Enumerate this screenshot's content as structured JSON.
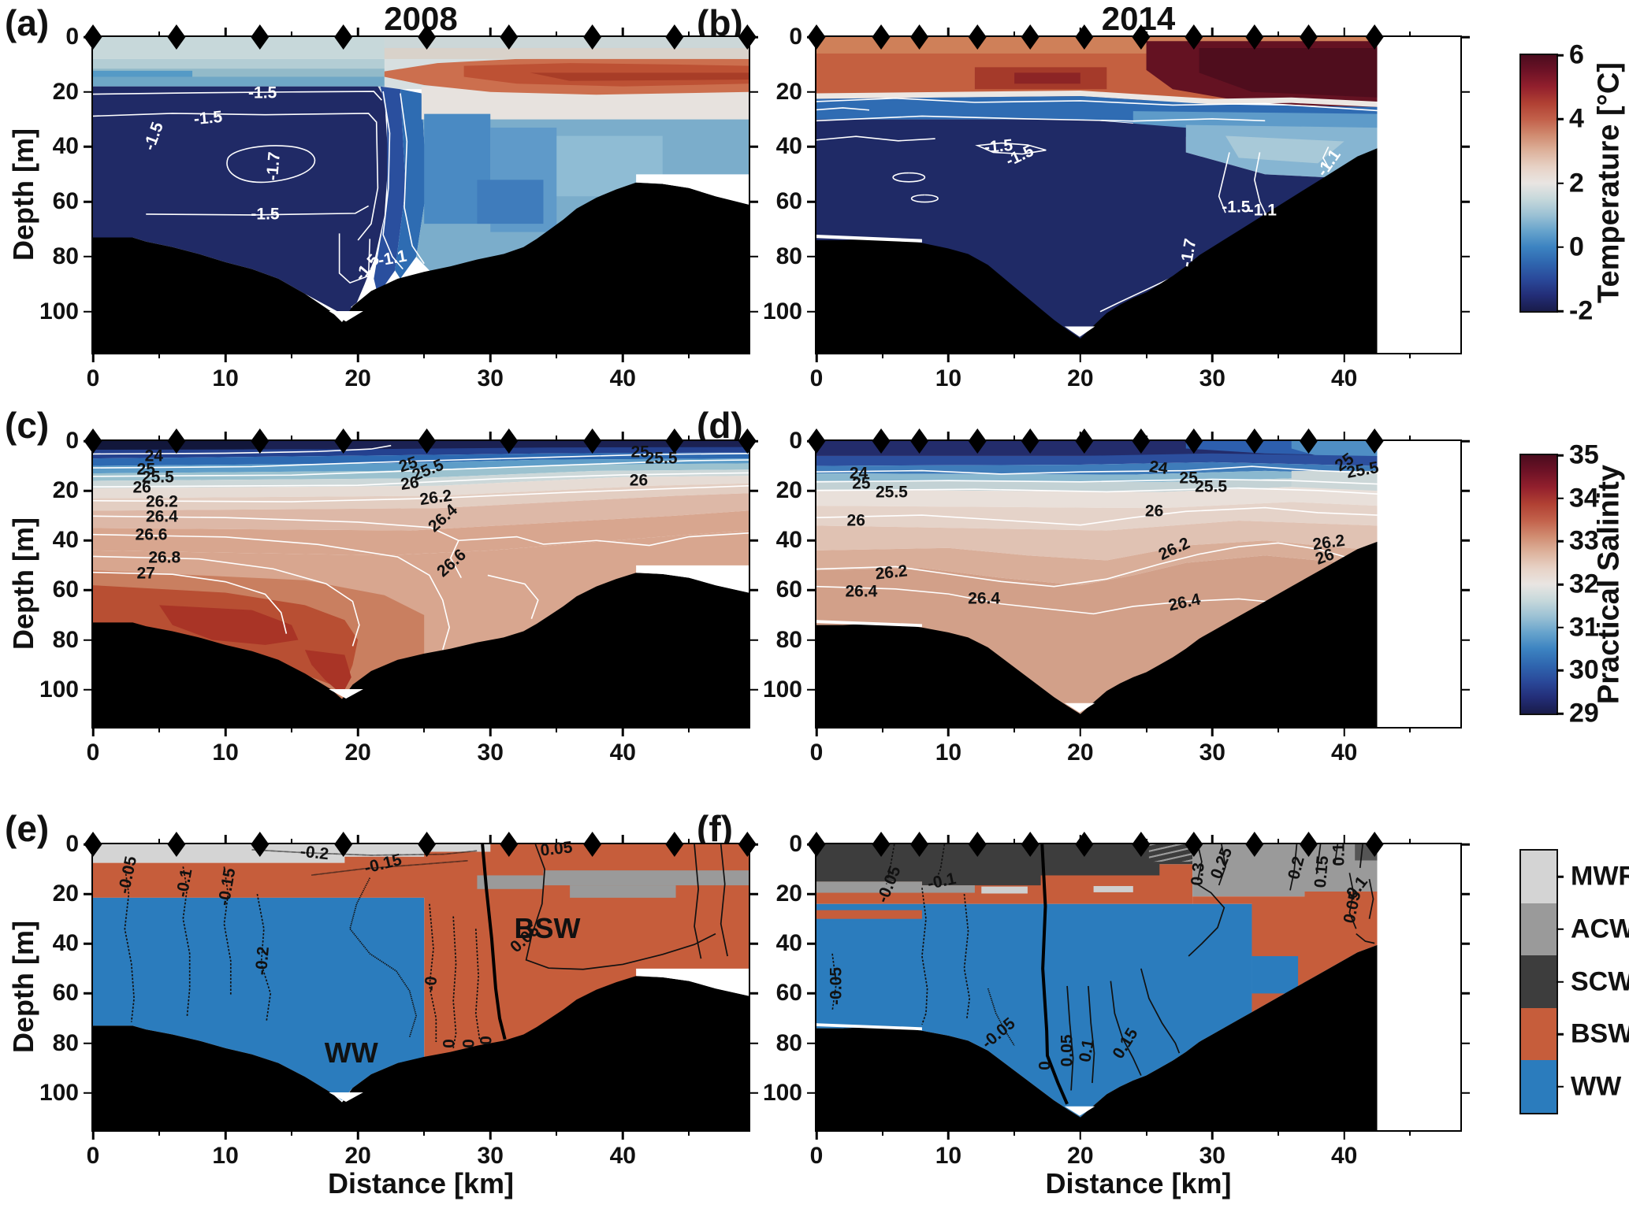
{
  "chart_data": {
    "type": "filled-contour-sections",
    "description_axes": {
      "x": "Distance [km]",
      "y": "Depth [m]"
    },
    "axis": {
      "xlabel": "Distance [km]",
      "ylabel": "Depth [m]"
    },
    "titles": {
      "left": "2008",
      "right": "2014"
    },
    "station_marker": "black-diamond",
    "colorbars": {
      "temperature": {
        "label": "Temperature [°C]",
        "ticks": [
          "6",
          "4",
          "2",
          "0",
          "-2"
        ],
        "range": [
          -2,
          6
        ],
        "stops": [
          "#4b0c1e",
          "#6e1226",
          "#93202d",
          "#b04033",
          "#c2604a",
          "#d08b70",
          "#ddb29c",
          "#e7d2c6",
          "#e9e5e2",
          "#c6d8db",
          "#9bc1d4",
          "#66a3cc",
          "#3c83c1",
          "#2f66af",
          "#2a499a",
          "#232e78",
          "#191c4a"
        ]
      },
      "salinity": {
        "label": "Practical Salinity",
        "ticks": [
          "35",
          "34",
          "33",
          "32",
          "31",
          "30",
          "29"
        ],
        "range": [
          29,
          35
        ],
        "stops": [
          "#4b0c1e",
          "#6e1226",
          "#93202d",
          "#b04033",
          "#c2604a",
          "#d08b70",
          "#ddb29c",
          "#e7d2c6",
          "#e9e5e2",
          "#c6d8db",
          "#9bc1d4",
          "#66a3cc",
          "#3c83c1",
          "#2f66af",
          "#2a499a",
          "#232e78",
          "#191c4a"
        ]
      },
      "water_mass": {
        "entries": [
          {
            "label": "MWR",
            "color": "#d4d4d4"
          },
          {
            "label": "ACW",
            "color": "#9a9a9a"
          },
          {
            "label": "SCW",
            "color": "#3d3d3d"
          },
          {
            "label": "BSW",
            "color": "#c65d3b"
          },
          {
            "label": "WW",
            "color": "#2b7cbd"
          }
        ]
      }
    },
    "panels": [
      {
        "id": "a",
        "letter": "(a)",
        "title": "2008",
        "variable": "temperature",
        "year": 2008,
        "colorbar": "temperature",
        "xmax": 49.5,
        "ymax": 115,
        "xticks": [
          0,
          10,
          20,
          30,
          40
        ],
        "xminor": [
          5,
          15,
          25,
          35,
          45
        ],
        "yticks": [
          0,
          20,
          40,
          60,
          80,
          100
        ],
        "stations_km": [
          0,
          6.3,
          12.6,
          18.9,
          25.2,
          31.4,
          37.7,
          43.9,
          49.4
        ],
        "contour_color": "#ffffff",
        "contour_labels": [
          [
            "-1.5",
            12.8,
            20.3,
            0
          ],
          [
            "-1.5",
            8.7,
            29.5,
            -5
          ],
          [
            "-1.5",
            4.6,
            36,
            -70
          ],
          [
            "-1.7",
            13.6,
            47,
            -85
          ],
          [
            "-1.5",
            13,
            64.5,
            0
          ],
          [
            "-1.5",
            20.7,
            84,
            -50
          ],
          [
            "-1.1",
            22.6,
            80.5,
            -10
          ]
        ],
        "region_labels": []
      },
      {
        "id": "b",
        "letter": "(b)",
        "title": "2014",
        "variable": "temperature",
        "year": 2014,
        "colorbar": "temperature",
        "xmax": 48.8,
        "ymax": 115,
        "data_xmax": 42.5,
        "xticks": [
          0,
          10,
          20,
          30,
          40
        ],
        "xminor": [
          5,
          15,
          25,
          35,
          45
        ],
        "yticks": [
          0,
          20,
          40,
          60,
          80,
          100
        ],
        "stations_km": [
          0,
          4.9,
          7.8,
          12.2,
          16.2,
          20.3,
          24.6,
          28.6,
          33.2,
          37.3,
          42.3
        ],
        "contour_color": "#ffffff",
        "contour_labels": [
          [
            "-1.5",
            13.8,
            40,
            -5
          ],
          [
            "-1.5",
            15.4,
            43.2,
            -25
          ],
          [
            "-1.5",
            31.8,
            62,
            0
          ],
          [
            "-1.1",
            33.8,
            63,
            0
          ],
          [
            "-1.7",
            28.2,
            78.5,
            -80
          ],
          [
            "-1.1",
            38.8,
            46,
            -55
          ]
        ],
        "region_labels": []
      },
      {
        "id": "c",
        "letter": "(c)",
        "title": "",
        "variable": "salinity",
        "year": 2008,
        "colorbar": "salinity",
        "xmax": 49.5,
        "ymax": 115,
        "xticks": [
          0,
          10,
          20,
          30,
          40
        ],
        "xminor": [
          5,
          15,
          25,
          35,
          45
        ],
        "yticks": [
          0,
          20,
          40,
          60,
          80,
          100
        ],
        "stations_km": [
          0,
          6.3,
          12.6,
          18.9,
          25.2,
          31.4,
          37.7,
          43.9,
          49.4
        ],
        "contour_color": "#111111",
        "contour_labels": [
          [
            "24",
            4.6,
            6,
            0
          ],
          [
            "25",
            4,
            11.3,
            0
          ],
          [
            "25.5",
            4.9,
            14.6,
            0
          ],
          [
            "26",
            3.7,
            18.8,
            0
          ],
          [
            "26.2",
            5.2,
            24.3,
            0
          ],
          [
            "26.4",
            5.2,
            30.5,
            0
          ],
          [
            "26.6",
            4.4,
            37.8,
            0
          ],
          [
            "26.8",
            5.4,
            46.8,
            0
          ],
          [
            "27",
            4,
            53.3,
            0
          ],
          [
            "25",
            23.8,
            9.6,
            -18
          ],
          [
            "25.5",
            25.3,
            11.6,
            -22
          ],
          [
            "26",
            23.9,
            17,
            -8
          ],
          [
            "26.2",
            25.9,
            22.8,
            -8
          ],
          [
            "26.4",
            26.4,
            31,
            -42
          ],
          [
            "26.6",
            27.1,
            49,
            -42
          ],
          [
            "25",
            41.3,
            4.3,
            0
          ],
          [
            "25.5",
            42.9,
            6.9,
            0
          ],
          [
            "26",
            41.2,
            15.8,
            0
          ]
        ],
        "region_labels": []
      },
      {
        "id": "d",
        "letter": "(d)",
        "title": "",
        "variable": "salinity",
        "year": 2014,
        "colorbar": "salinity",
        "xmax": 48.8,
        "ymax": 115,
        "data_xmax": 42.5,
        "xticks": [
          0,
          10,
          20,
          30,
          40
        ],
        "xminor": [
          5,
          15,
          25,
          35,
          45
        ],
        "yticks": [
          0,
          20,
          40,
          60,
          80,
          100
        ],
        "stations_km": [
          0,
          4.9,
          7.8,
          12.2,
          16.2,
          20.3,
          24.6,
          28.6,
          33.2,
          37.3,
          42.3
        ],
        "contour_color": "#111111",
        "contour_labels": [
          [
            "24",
            3.2,
            13,
            0
          ],
          [
            "25",
            3.4,
            17,
            0
          ],
          [
            "25.5",
            5.7,
            20.7,
            0
          ],
          [
            "26",
            3,
            32,
            0
          ],
          [
            "26.2",
            5.7,
            53,
            -6
          ],
          [
            "26.4",
            3.4,
            60.5,
            0
          ],
          [
            "24",
            25.9,
            10.8,
            8
          ],
          [
            "25",
            28.2,
            15,
            0
          ],
          [
            "25.5",
            29.9,
            18.3,
            0
          ],
          [
            "26",
            25.6,
            28.3,
            0
          ],
          [
            "26.2",
            27.1,
            43.5,
            -25
          ],
          [
            "26.4",
            27.9,
            65,
            -12
          ],
          [
            "26.4",
            12.7,
            63.5,
            0
          ],
          [
            "25",
            40,
            8.4,
            -35
          ],
          [
            "25.5",
            41.4,
            11.6,
            -10
          ],
          [
            "26",
            38.5,
            46.5,
            -20
          ],
          [
            "26.2",
            38.8,
            41,
            -8
          ]
        ],
        "region_labels": []
      },
      {
        "id": "e",
        "letter": "(e)",
        "title": "",
        "variable": "water_mass",
        "year": 2008,
        "colorbar": "water_mass",
        "xmax": 49.5,
        "ymax": 115,
        "xticks": [
          0,
          10,
          20,
          30,
          40
        ],
        "xminor": [
          5,
          15,
          25,
          35,
          45
        ],
        "yticks": [
          0,
          20,
          40,
          60,
          80,
          100
        ],
        "stations_km": [
          0,
          6.3,
          12.6,
          18.9,
          25.2,
          31.4,
          37.7,
          43.9,
          49.4
        ],
        "contour_color": "#111111",
        "water_masses_shown": [
          "MWR",
          "ACW",
          "BSW",
          "WW"
        ],
        "contour_labels": [
          [
            "-0.2",
            16.7,
            3.4,
            6
          ],
          [
            "-0.15",
            21.9,
            8,
            -14
          ],
          [
            "-0.05",
            2.6,
            12.5,
            -78
          ],
          [
            "-0.1",
            6.9,
            15.5,
            -80
          ],
          [
            "-0.15",
            10.1,
            17,
            -80
          ],
          [
            "-0.2",
            12.8,
            47,
            -85
          ],
          [
            "-0",
            25.5,
            56,
            -85
          ],
          [
            "0",
            26.9,
            80,
            -90
          ],
          [
            "0",
            28.4,
            80,
            -90
          ],
          [
            "0",
            29.7,
            79,
            -90
          ],
          [
            "0.05",
            35,
            1.8,
            -6
          ],
          [
            "0.05",
            32.6,
            38,
            -42
          ]
        ],
        "region_labels": [
          [
            "WW",
            19.5,
            84
          ],
          [
            "BSW",
            34.3,
            34
          ]
        ]
      },
      {
        "id": "f",
        "letter": "(f)",
        "title": "",
        "variable": "water_mass",
        "year": 2014,
        "colorbar": "water_mass",
        "xmax": 48.8,
        "ymax": 115,
        "data_xmax": 42.5,
        "xticks": [
          0,
          10,
          20,
          30,
          40
        ],
        "xminor": [
          5,
          15,
          25,
          35,
          45
        ],
        "yticks": [
          0,
          20,
          40,
          60,
          80,
          100
        ],
        "stations_km": [
          0,
          4.9,
          7.8,
          12.2,
          16.2,
          20.3,
          24.6,
          28.6,
          33.2,
          37.3,
          42.3
        ],
        "contour_color": "#111111",
        "water_masses_shown": [
          "MWR",
          "ACW",
          "SCW",
          "BSW",
          "WW"
        ],
        "contour_labels": [
          [
            "-0.05",
            5.5,
            16,
            -68
          ],
          [
            "-0.1",
            9.5,
            14.8,
            -12
          ],
          [
            "-0.05",
            1.5,
            57,
            -90
          ],
          [
            "-0.05",
            13.8,
            76,
            -40
          ],
          [
            "0",
            17.3,
            89,
            -90
          ],
          [
            "0.05",
            19,
            83,
            -90
          ],
          [
            "0.1",
            20.5,
            83,
            -80
          ],
          [
            "0.15",
            23.4,
            80,
            -58
          ],
          [
            "0.3",
            28.9,
            12,
            -85
          ],
          [
            "0.25",
            30.7,
            7.5,
            -68
          ],
          [
            "0.2",
            36.4,
            9.5,
            -75
          ],
          [
            "0.15",
            38.3,
            11,
            -85
          ],
          [
            "0.1",
            39.6,
            4,
            -90
          ],
          [
            "0.1",
            41,
            17.5,
            -52
          ],
          [
            "0.05",
            40.6,
            25.5,
            -78
          ]
        ],
        "region_labels": []
      }
    ]
  }
}
